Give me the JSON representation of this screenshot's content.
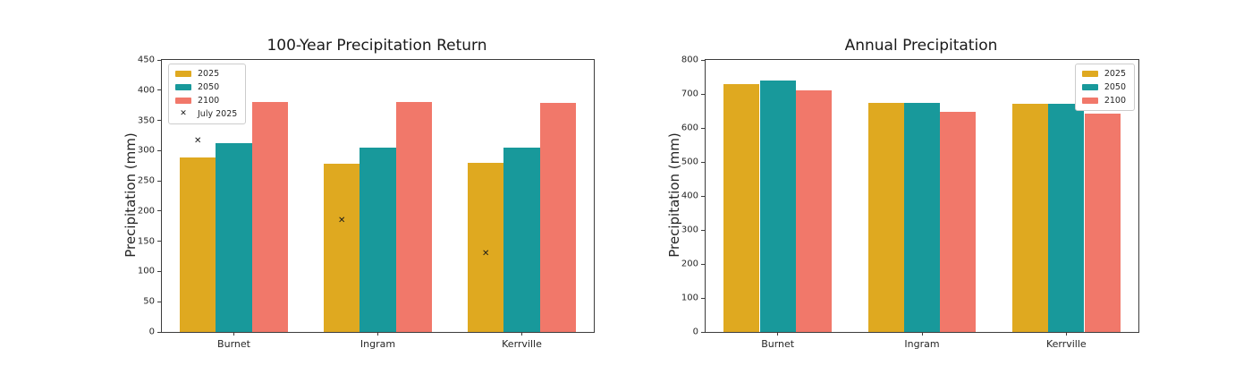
{
  "page": {
    "background": "#ffffff"
  },
  "palette": {
    "gold_2025": "#DFA920",
    "teal_2050": "#18999B",
    "salmon_2100": "#F1786A",
    "marker_black": "#1a1a1a",
    "spine_gray": "#3c3c3c"
  },
  "chart_data": [
    {
      "type": "bar",
      "title": "100-Year Precipitation Return",
      "xlabel": "",
      "ylabel": "Precipitation (mm)",
      "categories": [
        "Burnet",
        "Ingram",
        "Kerrville"
      ],
      "series": [
        {
          "name": "2025",
          "color": "#DFA920",
          "values": [
            288,
            278,
            280
          ]
        },
        {
          "name": "2050",
          "color": "#18999B",
          "values": [
            312,
            305,
            305
          ]
        },
        {
          "name": "2100",
          "color": "#F1786A",
          "values": [
            381,
            381,
            379
          ]
        }
      ],
      "scatter_series": {
        "name": "July 2025",
        "marker": "x",
        "marker_glyph": "✕",
        "color": "#1a1a1a",
        "values": [
          315,
          183,
          129
        ]
      },
      "ylim": [
        0,
        450
      ],
      "ytick_step": 50,
      "yticks": [
        0,
        50,
        100,
        150,
        200,
        250,
        300,
        350,
        400,
        450
      ],
      "legend_position": "top-left",
      "legend_entries": [
        "2025",
        "2050",
        "2100",
        "July 2025"
      ],
      "grid": false
    },
    {
      "type": "bar",
      "title": "Annual Precipitation",
      "xlabel": "",
      "ylabel": "Precipitation (mm)",
      "categories": [
        "Burnet",
        "Ingram",
        "Kerrville"
      ],
      "series": [
        {
          "name": "2025",
          "color": "#DFA920",
          "values": [
            730,
            675,
            670
          ]
        },
        {
          "name": "2050",
          "color": "#18999B",
          "values": [
            740,
            675,
            670
          ]
        },
        {
          "name": "2100",
          "color": "#F1786A",
          "values": [
            710,
            648,
            643
          ]
        }
      ],
      "ylim": [
        0,
        800
      ],
      "ytick_step": 100,
      "yticks": [
        0,
        100,
        200,
        300,
        400,
        500,
        600,
        700,
        800
      ],
      "legend_position": "top-right",
      "legend_entries": [
        "2025",
        "2050",
        "2100"
      ],
      "grid": false
    }
  ]
}
